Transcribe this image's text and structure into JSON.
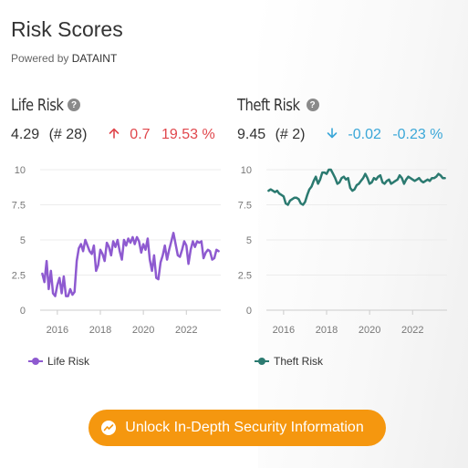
{
  "page": {
    "title": "Risk Scores",
    "powered_by_prefix": "Powered by",
    "powered_by_brand": "DATAINT"
  },
  "panels": {
    "life": {
      "title": "Life Risk",
      "help_icon": "?",
      "score": "4.29",
      "rank": "(# 28)",
      "change": "0.7",
      "change_pct": "19.53 %",
      "direction": "up",
      "legend": "Life Risk",
      "color": "#8e5ad0"
    },
    "theft": {
      "title": "Theft Risk",
      "help_icon": "?",
      "score": "9.45",
      "rank": "(# 2)",
      "change": "-0.02",
      "change_pct": "-0.23 %",
      "direction": "down",
      "legend": "Theft Risk",
      "color": "#2b7a70"
    }
  },
  "cta": {
    "label": "Unlock In-Depth Security Information",
    "icon": "trend-icon"
  },
  "chart_data": [
    {
      "type": "line",
      "ylabel": "",
      "ylim": [
        0,
        10
      ],
      "yticks": [
        "10",
        "7.5",
        "5",
        "2.5",
        "0"
      ],
      "xlim": [
        2015.2,
        2023.6
      ],
      "xticks": [
        "2016",
        "2018",
        "2020",
        "2022"
      ],
      "series": [
        {
          "name": "Life Risk",
          "x": [
            2015.3,
            2015.4,
            2015.5,
            2015.6,
            2015.7,
            2015.8,
            2015.9,
            2016.0,
            2016.1,
            2016.2,
            2016.3,
            2016.4,
            2016.5,
            2016.6,
            2016.7,
            2016.8,
            2016.9,
            2017.0,
            2017.1,
            2017.2,
            2017.3,
            2017.4,
            2017.5,
            2017.6,
            2017.7,
            2017.8,
            2017.9,
            2018.0,
            2018.1,
            2018.2,
            2018.3,
            2018.4,
            2018.5,
            2018.6,
            2018.7,
            2018.8,
            2018.9,
            2019.0,
            2019.1,
            2019.2,
            2019.3,
            2019.4,
            2019.5,
            2019.6,
            2019.7,
            2019.8,
            2019.9,
            2020.0,
            2020.1,
            2020.2,
            2020.3,
            2020.4,
            2020.5,
            2020.6,
            2020.7,
            2020.8,
            2020.9,
            2021.0,
            2021.1,
            2021.2,
            2021.3,
            2021.4,
            2021.5,
            2021.6,
            2021.7,
            2021.8,
            2021.9,
            2022.0,
            2022.1,
            2022.2,
            2022.3,
            2022.4,
            2022.5,
            2022.6,
            2022.7,
            2022.8,
            2022.9,
            2023.0,
            2023.1,
            2023.2,
            2023.3,
            2023.4,
            2023.5
          ],
          "values": [
            2.6,
            2.0,
            3.5,
            1.5,
            2.8,
            1.2,
            1.0,
            1.8,
            2.3,
            1.2,
            2.4,
            1.0,
            1.0,
            1.5,
            1.1,
            1.3,
            3.5,
            4.4,
            4.7,
            4.2,
            5.0,
            4.6,
            4.2,
            4.0,
            4.6,
            2.8,
            3.2,
            4.3,
            4.0,
            3.5,
            4.8,
            4.5,
            3.9,
            4.9,
            4.5,
            5.0,
            4.2,
            3.6,
            5.0,
            4.6,
            5.1,
            4.8,
            5.2,
            4.7,
            5.2,
            4.9,
            4.1,
            4.7,
            4.3,
            5.1,
            3.6,
            2.8,
            3.9,
            2.3,
            2.2,
            3.4,
            3.9,
            4.6,
            3.6,
            4.3,
            4.9,
            5.5,
            4.7,
            3.9,
            3.8,
            4.3,
            4.9,
            4.6,
            3.3,
            4.3,
            4.9,
            4.5,
            4.9,
            4.8,
            4.9,
            3.7,
            4.1,
            4.3,
            4.2,
            3.6,
            3.7,
            4.3,
            4.2
          ]
        }
      ]
    },
    {
      "type": "line",
      "ylabel": "",
      "ylim": [
        0,
        10
      ],
      "yticks": [
        "10",
        "7.5",
        "5",
        "2.5",
        "0"
      ],
      "xlim": [
        2015.2,
        2023.6
      ],
      "xticks": [
        "2016",
        "2018",
        "2020",
        "2022"
      ],
      "series": [
        {
          "name": "Theft Risk",
          "x": [
            2015.3,
            2015.4,
            2015.5,
            2015.6,
            2015.7,
            2015.8,
            2015.9,
            2016.0,
            2016.1,
            2016.2,
            2016.3,
            2016.4,
            2016.5,
            2016.6,
            2016.7,
            2016.8,
            2016.9,
            2017.0,
            2017.1,
            2017.2,
            2017.3,
            2017.4,
            2017.5,
            2017.6,
            2017.7,
            2017.8,
            2017.9,
            2018.0,
            2018.1,
            2018.2,
            2018.3,
            2018.4,
            2018.5,
            2018.6,
            2018.7,
            2018.8,
            2018.9,
            2019.0,
            2019.1,
            2019.2,
            2019.3,
            2019.4,
            2019.5,
            2019.6,
            2019.7,
            2019.8,
            2019.9,
            2020.0,
            2020.1,
            2020.2,
            2020.3,
            2020.4,
            2020.5,
            2020.6,
            2020.7,
            2020.8,
            2020.9,
            2021.0,
            2021.1,
            2021.2,
            2021.3,
            2021.4,
            2021.5,
            2021.6,
            2021.7,
            2021.8,
            2021.9,
            2022.0,
            2022.1,
            2022.2,
            2022.3,
            2022.4,
            2022.5,
            2022.6,
            2022.7,
            2022.8,
            2022.9,
            2023.0,
            2023.1,
            2023.2,
            2023.3,
            2023.4,
            2023.5
          ],
          "values": [
            8.5,
            8.6,
            8.5,
            8.4,
            8.5,
            8.3,
            8.2,
            8.1,
            7.6,
            7.5,
            7.8,
            7.9,
            8.0,
            8.0,
            7.9,
            7.6,
            7.5,
            7.7,
            8.2,
            8.6,
            8.8,
            9.2,
            9.5,
            9.0,
            9.3,
            9.8,
            9.8,
            9.7,
            10.0,
            10.0,
            9.7,
            9.4,
            9.0,
            9.1,
            9.4,
            9.5,
            9.3,
            9.4,
            8.7,
            8.5,
            8.6,
            8.9,
            9.0,
            9.2,
            9.4,
            9.7,
            9.4,
            9.0,
            9.1,
            9.4,
            9.3,
            9.5,
            9.6,
            9.1,
            9.0,
            9.2,
            9.3,
            9.0,
            9.1,
            9.2,
            9.3,
            9.6,
            9.4,
            9.0,
            9.3,
            9.5,
            9.4,
            9.3,
            9.2,
            9.3,
            9.4,
            9.2,
            9.1,
            9.2,
            9.3,
            9.2,
            9.4,
            9.4,
            9.5,
            9.7,
            9.6,
            9.4,
            9.4
          ]
        }
      ]
    }
  ]
}
